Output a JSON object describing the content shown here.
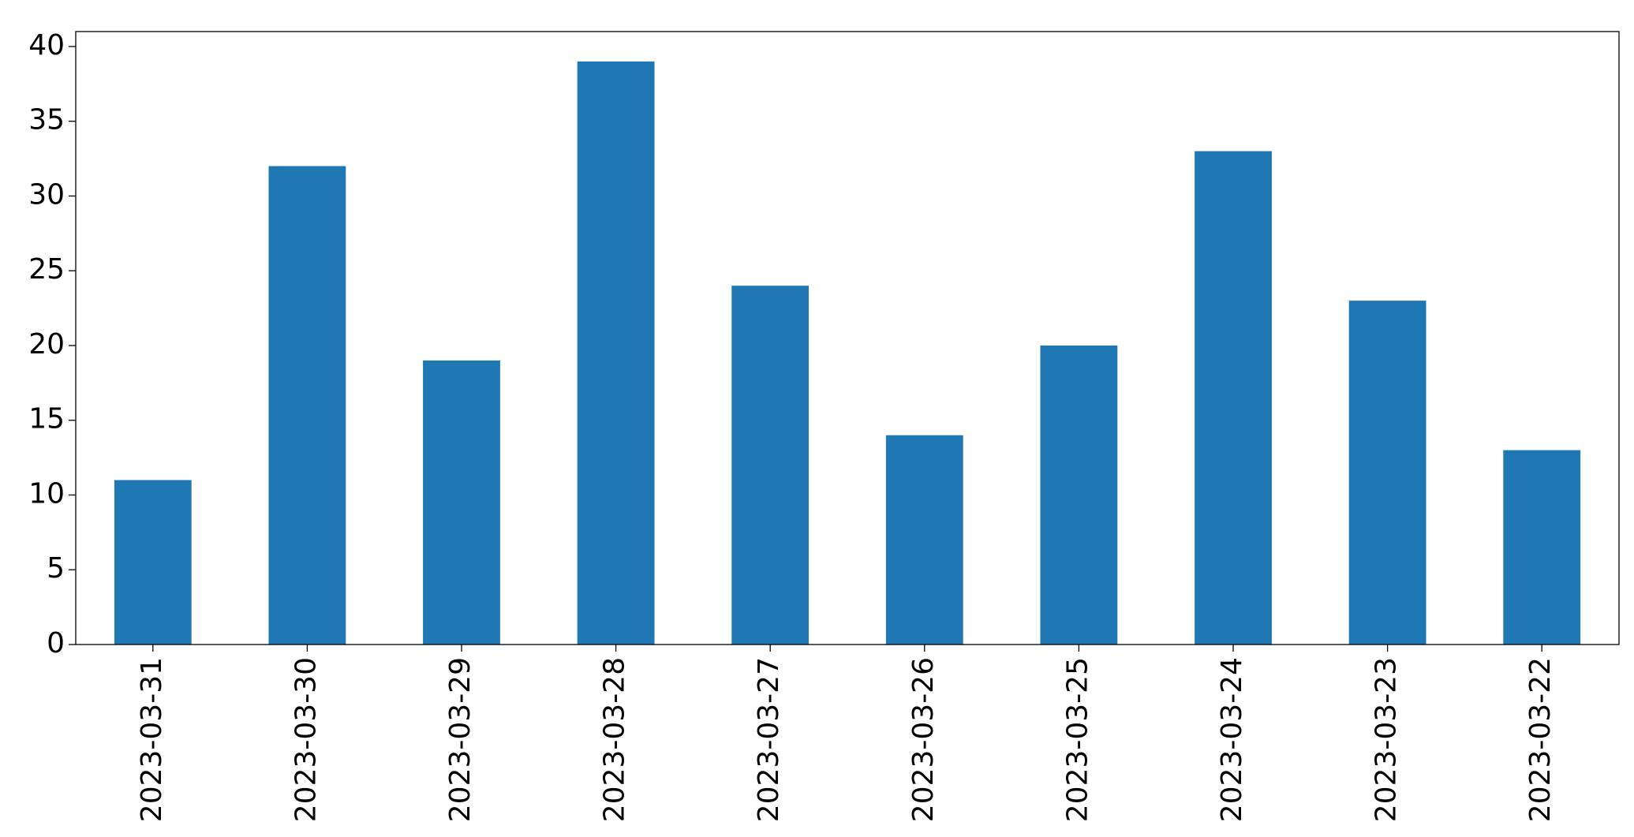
{
  "chart_data": {
    "type": "bar",
    "categories": [
      "2023-03-31",
      "2023-03-30",
      "2023-03-29",
      "2023-03-28",
      "2023-03-27",
      "2023-03-26",
      "2023-03-25",
      "2023-03-24",
      "2023-03-23",
      "2023-03-22"
    ],
    "values": [
      11,
      32,
      19,
      39,
      24,
      14,
      20,
      33,
      23,
      13
    ],
    "color": "#1f77b4",
    "ylim": [
      0,
      41
    ],
    "yticks": [
      0,
      5,
      10,
      15,
      20,
      25,
      30,
      35,
      40
    ],
    "grid": false
  }
}
